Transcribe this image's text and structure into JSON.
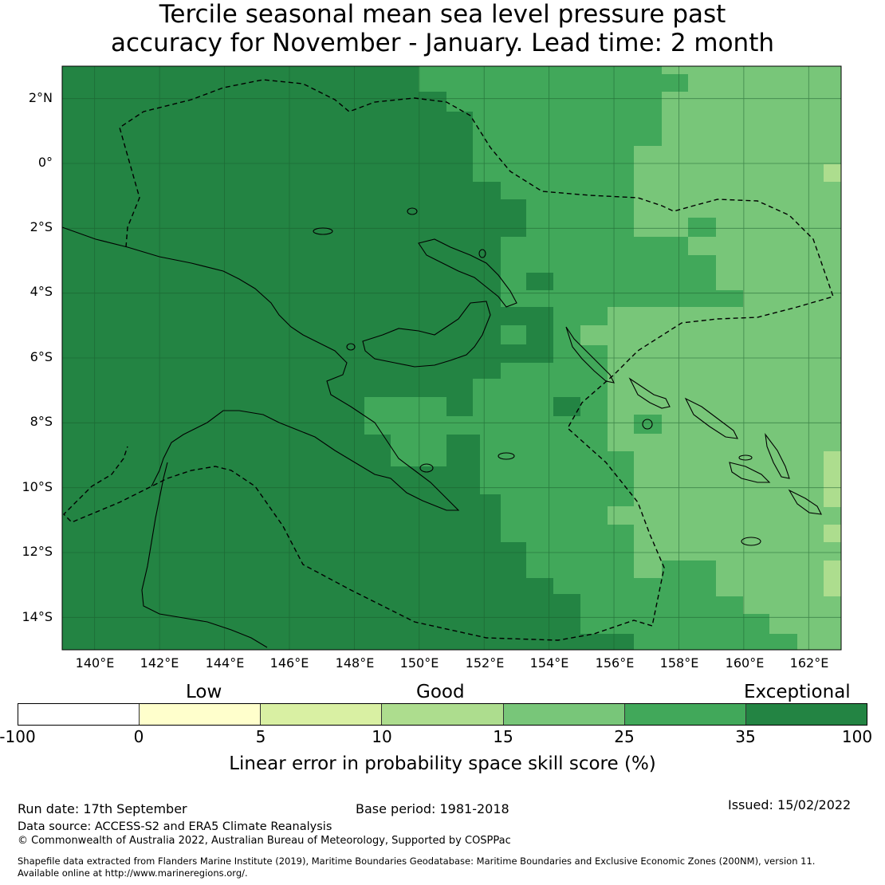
{
  "title_line1": "Tercile seasonal mean sea level pressure past",
  "title_line2": "accuracy for November - January. Lead time: 2 month",
  "map": {
    "lon_range": [
      139,
      163
    ],
    "lat_range": [
      -15,
      3
    ],
    "lon_ticks": [
      "140°E",
      "142°E",
      "144°E",
      "146°E",
      "148°E",
      "150°E",
      "152°E",
      "154°E",
      "156°E",
      "158°E",
      "160°E",
      "162°E"
    ],
    "lat_ticks": [
      "2°N",
      "0°",
      "2°S",
      "4°S",
      "6°S",
      "8°S",
      "10°S",
      "12°S",
      "14°S"
    ],
    "grid": true,
    "skill_field": "Gridded skill-score categories (values in %): dark green ≥35 across the west, medium green 25–35 in the central band, light green 15–25 and pale 10–15 patches in the east."
  },
  "colorbar": {
    "category_labels": [
      "Low",
      "Good",
      "Exceptional"
    ],
    "ticks": [
      "-100",
      "0",
      "5",
      "10",
      "15",
      "25",
      "35",
      "100"
    ],
    "colors": [
      "#ffffff",
      "#ffffcc",
      "#d9f0a3",
      "#addd8e",
      "#78c679",
      "#41a85a",
      "#238443"
    ],
    "label": "Linear error in probability space skill score (%)"
  },
  "footer": {
    "run_date": "Run date: 17th September",
    "base_period": "Base period: 1981-2018",
    "issued": "Issued: 15/02/2022",
    "data_source": "Data source: ACCESS-S2 and ERA5 Climate Reanalysis",
    "copyright": "© Commonwealth of Australia 2022, Australian Bureau of Meteorology, Supported by COSPPac",
    "shapefile_line1": "Shapefile data extracted from Flanders Marine Institute (2019), Maritime Boundaries Geodatabase: Maritime Boundaries and Exclusive Economic Zones (200NM), version 11.",
    "shapefile_line2": "Available online at http://www.marineregions.org/."
  }
}
